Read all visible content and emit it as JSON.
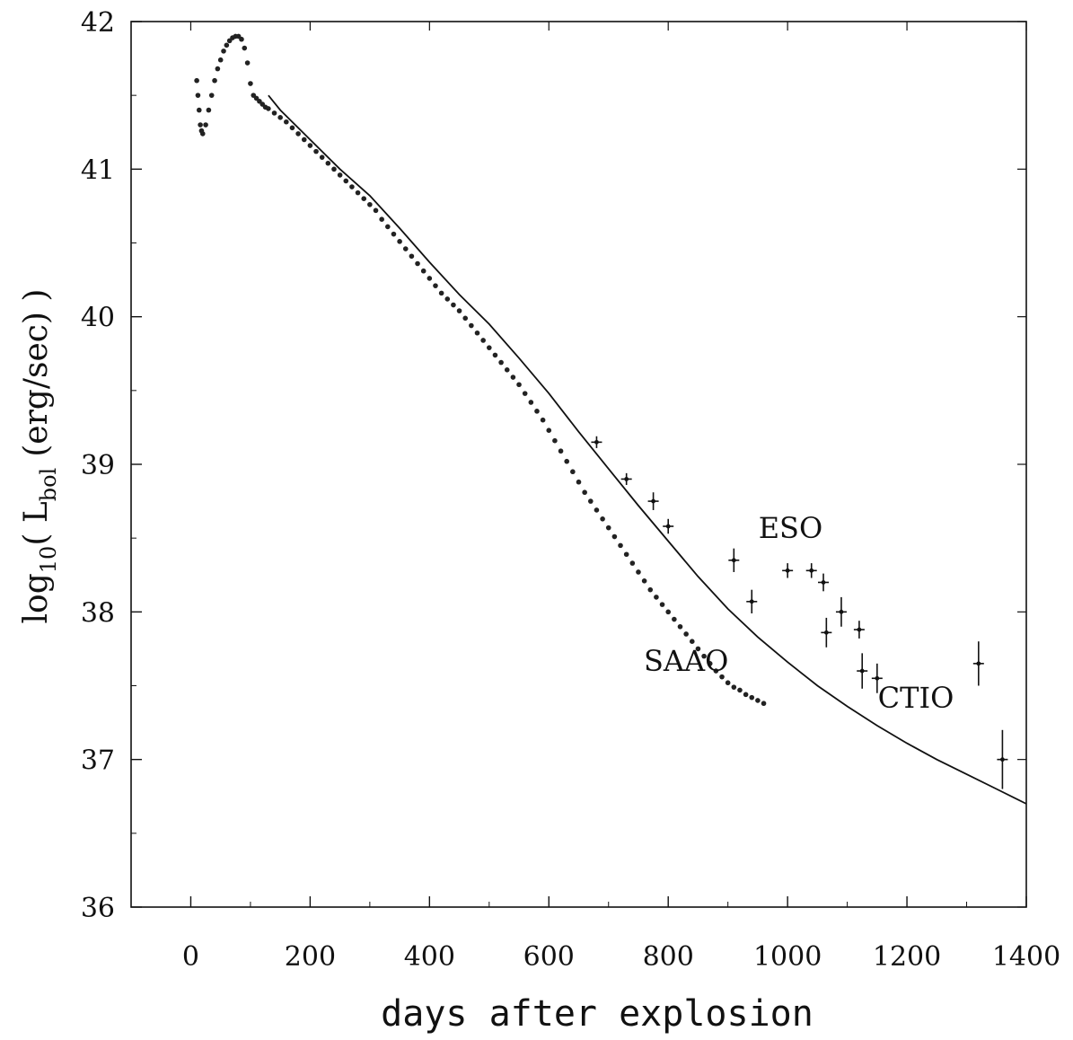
{
  "chart_data": {
    "type": "scatter",
    "title": "",
    "xlabel": "days after explosion",
    "ylabel": {
      "prefix": "log",
      "base": "10",
      "paren_open": "( L",
      "sub": "bol",
      "rest": "(erg/sec) )"
    },
    "xlim": [
      -100,
      1400
    ],
    "ylim": [
      36,
      42
    ],
    "x_ticks": [
      0,
      200,
      400,
      600,
      800,
      1000,
      1200,
      1400
    ],
    "y_ticks": [
      36,
      37,
      38,
      39,
      40,
      41,
      42
    ],
    "grid": false,
    "legend": "none",
    "annotations": [
      {
        "text": "SAAO",
        "x": 830,
        "y": 37.6
      },
      {
        "text": "ESO",
        "x": 1005,
        "y": 38.5
      },
      {
        "text": "CTIO",
        "x": 1215,
        "y": 37.35
      }
    ],
    "series": [
      {
        "kind": "line",
        "x": [
          130,
          150,
          200,
          250,
          300,
          350,
          400,
          450,
          500,
          550,
          600,
          650,
          700,
          750,
          800,
          850,
          900,
          950,
          1000,
          1050,
          1100,
          1150,
          1200,
          1250,
          1300,
          1350,
          1400
        ],
        "y": [
          41.5,
          41.4,
          41.2,
          41.0,
          40.82,
          40.6,
          40.37,
          40.15,
          39.95,
          39.72,
          39.48,
          39.22,
          38.97,
          38.72,
          38.48,
          38.24,
          38.02,
          37.83,
          37.66,
          37.5,
          37.36,
          37.23,
          37.11,
          37.0,
          36.9,
          36.8,
          36.7
        ]
      },
      {
        "kind": "points",
        "x": [
          10,
          12,
          14,
          16,
          18,
          20,
          25,
          30,
          35,
          40,
          45,
          50,
          55,
          60,
          65,
          70,
          75,
          80,
          85,
          90,
          95,
          100,
          105,
          110,
          115,
          120,
          125,
          130,
          140,
          150,
          160,
          170,
          180,
          190,
          200,
          210,
          220,
          230,
          240,
          250,
          260,
          270,
          280,
          290,
          300,
          310,
          320,
          330,
          340,
          350,
          360,
          370,
          380,
          390,
          400,
          410,
          420,
          430,
          440,
          450,
          460,
          470,
          480,
          490,
          500,
          510,
          520,
          530,
          540,
          550
        ],
        "y": [
          41.6,
          41.5,
          41.4,
          41.3,
          41.26,
          41.24,
          41.3,
          41.4,
          41.5,
          41.6,
          41.68,
          41.74,
          41.8,
          41.84,
          41.87,
          41.89,
          41.9,
          41.9,
          41.88,
          41.82,
          41.72,
          41.58,
          41.5,
          41.48,
          41.46,
          41.44,
          41.42,
          41.41,
          41.38,
          41.35,
          41.32,
          41.28,
          41.24,
          41.2,
          41.16,
          41.12,
          41.08,
          41.04,
          41.0,
          40.96,
          40.92,
          40.88,
          40.84,
          40.8,
          40.76,
          40.72,
          40.66,
          40.61,
          40.56,
          40.51,
          40.46,
          40.41,
          40.36,
          40.31,
          40.26,
          40.21,
          40.16,
          40.12,
          40.08,
          40.04,
          39.99,
          39.94,
          39.89,
          39.84,
          39.79,
          39.74,
          39.69,
          39.64,
          39.59,
          39.54
        ]
      },
      {
        "kind": "points",
        "x": [
          560,
          570,
          580,
          590,
          600,
          610,
          620,
          630,
          640,
          650,
          660,
          670,
          680,
          690,
          700,
          710,
          720,
          730,
          740,
          750,
          760,
          770,
          780,
          790,
          800,
          810,
          820,
          830,
          840,
          850,
          860,
          870,
          880,
          890,
          900,
          910,
          920,
          930,
          940,
          950,
          960
        ],
        "y": [
          39.48,
          39.42,
          39.36,
          39.3,
          39.23,
          39.16,
          39.09,
          39.02,
          38.95,
          38.88,
          38.81,
          38.75,
          38.69,
          38.63,
          38.57,
          38.51,
          38.45,
          38.39,
          38.33,
          38.27,
          38.21,
          38.15,
          38.1,
          38.05,
          38.0,
          37.95,
          37.9,
          37.85,
          37.8,
          37.75,
          37.7,
          37.65,
          37.6,
          37.56,
          37.52,
          37.49,
          37.47,
          37.44,
          37.42,
          37.4,
          37.38
        ]
      },
      {
        "kind": "errorbars",
        "x": [
          680,
          730,
          775,
          800,
          910,
          940,
          1000,
          1040,
          1060,
          1065,
          1090,
          1120,
          1125,
          1150,
          1320,
          1360
        ],
        "y": [
          39.15,
          38.9,
          38.75,
          38.58,
          38.35,
          38.07,
          38.28,
          38.28,
          38.2,
          37.86,
          38.0,
          37.88,
          37.6,
          37.55,
          37.65,
          37.0
        ],
        "yerr": [
          0.04,
          0.04,
          0.06,
          0.05,
          0.08,
          0.08,
          0.05,
          0.05,
          0.06,
          0.1,
          0.1,
          0.06,
          0.12,
          0.1,
          0.15,
          0.2
        ]
      }
    ]
  }
}
